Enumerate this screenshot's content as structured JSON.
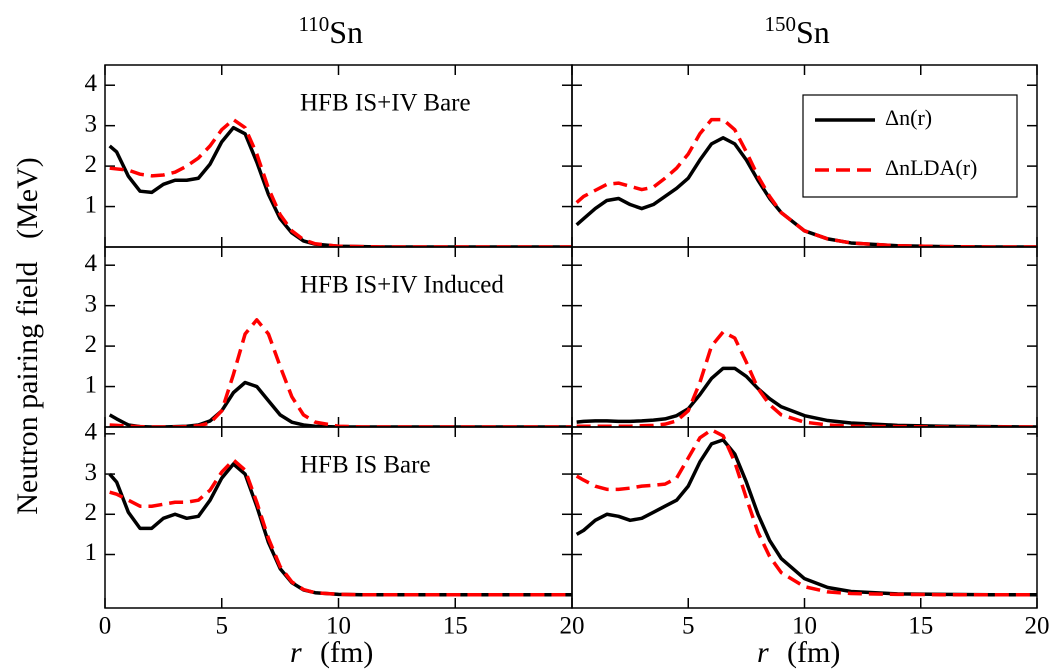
{
  "chart_data": [
    {
      "type": "line",
      "title_superscript": "110",
      "title": "Sn",
      "annotation": "HFB IS+IV Bare",
      "x": [
        0.2,
        0.5,
        1,
        1.5,
        2,
        2.5,
        3,
        3.5,
        4,
        4.5,
        5,
        5.5,
        6,
        6.5,
        7,
        7.5,
        8,
        8.5,
        9,
        10,
        11,
        12,
        14,
        16,
        18,
        20
      ],
      "series": [
        {
          "name": "Δn(r)",
          "color": "#000000",
          "style": "solid",
          "values": [
            2.5,
            2.35,
            1.75,
            1.38,
            1.35,
            1.55,
            1.65,
            1.65,
            1.7,
            2.05,
            2.6,
            2.95,
            2.8,
            2.1,
            1.3,
            0.7,
            0.35,
            0.15,
            0.07,
            0.02,
            0.01,
            0,
            0,
            0,
            0,
            0
          ]
        },
        {
          "name": "ΔnLDA(r)",
          "color": "#ff0000",
          "style": "dashed",
          "values": [
            1.95,
            1.93,
            1.9,
            1.8,
            1.76,
            1.78,
            1.85,
            2.0,
            2.2,
            2.5,
            2.9,
            3.15,
            2.95,
            2.3,
            1.45,
            0.8,
            0.4,
            0.18,
            0.08,
            0.02,
            0.01,
            0,
            0,
            0,
            0,
            0
          ]
        }
      ],
      "xlim": [
        0,
        20
      ],
      "ylim": [
        0,
        4.5
      ],
      "xticks": [
        0,
        5,
        10,
        15,
        20
      ],
      "yticks": [
        1,
        2,
        3,
        4
      ],
      "show_xticklabels": false,
      "show_yticklabels": true
    },
    {
      "type": "line",
      "title_superscript": "150",
      "title": "Sn",
      "legend": "upper right",
      "x": [
        0.2,
        0.5,
        1,
        1.5,
        2,
        2.5,
        3,
        3.5,
        4,
        4.5,
        5,
        5.5,
        6,
        6.5,
        7,
        7.5,
        8,
        8.5,
        9,
        10,
        11,
        12,
        14,
        16,
        18,
        20
      ],
      "series": [
        {
          "name": "Δn(r)",
          "color": "#000000",
          "style": "solid",
          "values": [
            0.55,
            0.7,
            0.95,
            1.15,
            1.2,
            1.05,
            0.95,
            1.05,
            1.25,
            1.45,
            1.7,
            2.15,
            2.55,
            2.7,
            2.55,
            2.15,
            1.65,
            1.2,
            0.85,
            0.4,
            0.2,
            0.1,
            0.03,
            0.01,
            0,
            0
          ]
        },
        {
          "name": "ΔnLDA(r)",
          "color": "#ff0000",
          "style": "dashed",
          "values": [
            1.1,
            1.25,
            1.4,
            1.55,
            1.58,
            1.5,
            1.42,
            1.48,
            1.7,
            1.95,
            2.3,
            2.8,
            3.15,
            3.15,
            2.9,
            2.35,
            1.75,
            1.25,
            0.85,
            0.4,
            0.2,
            0.1,
            0.03,
            0.01,
            0,
            0
          ]
        }
      ],
      "xlim": [
        0,
        20
      ],
      "ylim": [
        0,
        4.5
      ],
      "xticks": [
        5,
        10,
        15,
        20
      ],
      "yticks": [
        1,
        2,
        3,
        4
      ],
      "show_xticklabels": false,
      "show_yticklabels": false
    },
    {
      "type": "line",
      "annotation": "HFB IS+IV Induced",
      "ylabel": "Neutron pairing field   (MeV)",
      "x": [
        0.2,
        0.5,
        1,
        1.5,
        2,
        2.5,
        3,
        3.5,
        4,
        4.5,
        5,
        5.5,
        6,
        6.5,
        7,
        7.5,
        8,
        8.5,
        9,
        10,
        11,
        12,
        14,
        16,
        18,
        20
      ],
      "series": [
        {
          "name": "Δn(r)",
          "color": "#000000",
          "style": "solid",
          "values": [
            0.3,
            0.2,
            0.05,
            0.01,
            0,
            0,
            0.01,
            0.02,
            0.05,
            0.15,
            0.4,
            0.85,
            1.1,
            1.0,
            0.65,
            0.3,
            0.12,
            0.05,
            0.02,
            0,
            0,
            0,
            0,
            0,
            0,
            0
          ]
        },
        {
          "name": "ΔnLDA(r)",
          "color": "#ff0000",
          "style": "dashed",
          "values": [
            0.05,
            0.04,
            0.02,
            0.01,
            0,
            0,
            0,
            0.01,
            0.03,
            0.1,
            0.4,
            1.3,
            2.3,
            2.65,
            2.3,
            1.5,
            0.75,
            0.3,
            0.12,
            0.02,
            0,
            0,
            0,
            0,
            0,
            0
          ]
        }
      ],
      "xlim": [
        0,
        20
      ],
      "ylim": [
        0,
        4.45
      ],
      "xticks": [
        0,
        5,
        10,
        15,
        20
      ],
      "yticks": [
        1,
        2,
        3,
        4
      ],
      "show_xticklabels": false,
      "show_yticklabels": true
    },
    {
      "type": "line",
      "x": [
        0.2,
        0.5,
        1,
        1.5,
        2,
        2.5,
        3,
        3.5,
        4,
        4.5,
        5,
        5.5,
        6,
        6.5,
        7,
        7.5,
        8,
        8.5,
        9,
        10,
        11,
        12,
        14,
        16,
        18,
        20
      ],
      "series": [
        {
          "name": "Δn(r)",
          "color": "#000000",
          "style": "solid",
          "values": [
            0.12,
            0.14,
            0.15,
            0.15,
            0.14,
            0.14,
            0.15,
            0.17,
            0.2,
            0.28,
            0.45,
            0.8,
            1.2,
            1.45,
            1.45,
            1.25,
            0.95,
            0.7,
            0.5,
            0.28,
            0.16,
            0.1,
            0.04,
            0.02,
            0.01,
            0
          ]
        },
        {
          "name": "ΔnLDA(r)",
          "color": "#ff0000",
          "style": "dashed",
          "values": [
            0.02,
            0.02,
            0.02,
            0.02,
            0.02,
            0.02,
            0.03,
            0.04,
            0.07,
            0.15,
            0.4,
            1.1,
            2.0,
            2.35,
            2.2,
            1.6,
            0.95,
            0.55,
            0.3,
            0.12,
            0.05,
            0.02,
            0.01,
            0,
            0,
            0
          ]
        }
      ],
      "xlim": [
        0,
        20
      ],
      "ylim": [
        0,
        4.45
      ],
      "xticks": [
        5,
        10,
        15,
        20
      ],
      "yticks": [
        1,
        2,
        3,
        4
      ],
      "show_xticklabels": false,
      "show_yticklabels": false
    },
    {
      "type": "line",
      "annotation": "HFB IS Bare",
      "xlabel_symbol": "r",
      "xlabel": "(fm)",
      "x": [
        0.2,
        0.5,
        1,
        1.5,
        2,
        2.5,
        3,
        3.5,
        4,
        4.5,
        5,
        5.5,
        6,
        6.5,
        7,
        7.5,
        8,
        8.5,
        9,
        10,
        11,
        12,
        14,
        16,
        18,
        20
      ],
      "series": [
        {
          "name": "Δn(r)",
          "color": "#000000",
          "style": "solid",
          "values": [
            3.0,
            2.8,
            2.05,
            1.65,
            1.65,
            1.9,
            2.0,
            1.9,
            1.95,
            2.35,
            2.9,
            3.25,
            3.0,
            2.2,
            1.3,
            0.65,
            0.3,
            0.12,
            0.05,
            0.01,
            0,
            0,
            0,
            0,
            0,
            0
          ]
        },
        {
          "name": "ΔnLDA(r)",
          "color": "#ff0000",
          "style": "dashed",
          "values": [
            2.55,
            2.5,
            2.35,
            2.2,
            2.2,
            2.25,
            2.3,
            2.3,
            2.35,
            2.6,
            3.05,
            3.35,
            3.1,
            2.3,
            1.4,
            0.7,
            0.32,
            0.13,
            0.05,
            0.01,
            0,
            0,
            0,
            0,
            0,
            0
          ]
        }
      ],
      "xlim": [
        0,
        20
      ],
      "ylim": [
        -0.33,
        4.17
      ],
      "xticks": [
        0,
        5,
        10,
        15,
        20
      ],
      "yticks": [
        1,
        2,
        3,
        4
      ],
      "show_xticklabels": true,
      "show_yticklabels": true
    },
    {
      "type": "line",
      "xlabel_symbol": "r",
      "xlabel": "(fm)",
      "x": [
        0.2,
        0.5,
        1,
        1.5,
        2,
        2.5,
        3,
        3.5,
        4,
        4.5,
        5,
        5.5,
        6,
        6.5,
        7,
        7.5,
        8,
        8.5,
        9,
        10,
        11,
        12,
        14,
        16,
        18,
        20
      ],
      "series": [
        {
          "name": "Δn(r)",
          "color": "#000000",
          "style": "solid",
          "values": [
            1.5,
            1.6,
            1.85,
            2.0,
            1.95,
            1.85,
            1.9,
            2.05,
            2.2,
            2.35,
            2.7,
            3.3,
            3.75,
            3.85,
            3.5,
            2.8,
            2.0,
            1.35,
            0.9,
            0.4,
            0.18,
            0.08,
            0.02,
            0.01,
            0,
            0
          ]
        },
        {
          "name": "ΔnLDA(r)",
          "color": "#ff0000",
          "style": "dashed",
          "values": [
            2.95,
            2.85,
            2.7,
            2.62,
            2.62,
            2.65,
            2.7,
            2.72,
            2.75,
            2.9,
            3.4,
            3.9,
            4.1,
            3.95,
            3.3,
            2.4,
            1.55,
            0.95,
            0.55,
            0.2,
            0.07,
            0.03,
            0.01,
            0,
            0,
            0
          ]
        }
      ],
      "xlim": [
        0,
        20
      ],
      "ylim": [
        -0.33,
        4.17
      ],
      "xticks": [
        5,
        10,
        15,
        20
      ],
      "yticks": [
        1,
        2,
        3,
        4
      ],
      "show_xticklabels": true,
      "show_yticklabels": false
    }
  ]
}
